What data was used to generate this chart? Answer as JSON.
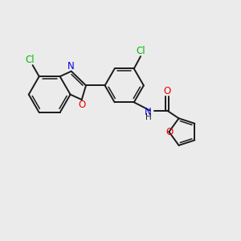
{
  "background_color": "#ebebeb",
  "bond_color": "#1a1a1a",
  "atom_colors": {
    "Cl": "#00bb00",
    "N": "#0000ee",
    "O": "#ee0000",
    "C": "#1a1a1a"
  },
  "figsize": [
    3.0,
    3.0
  ],
  "dpi": 100
}
